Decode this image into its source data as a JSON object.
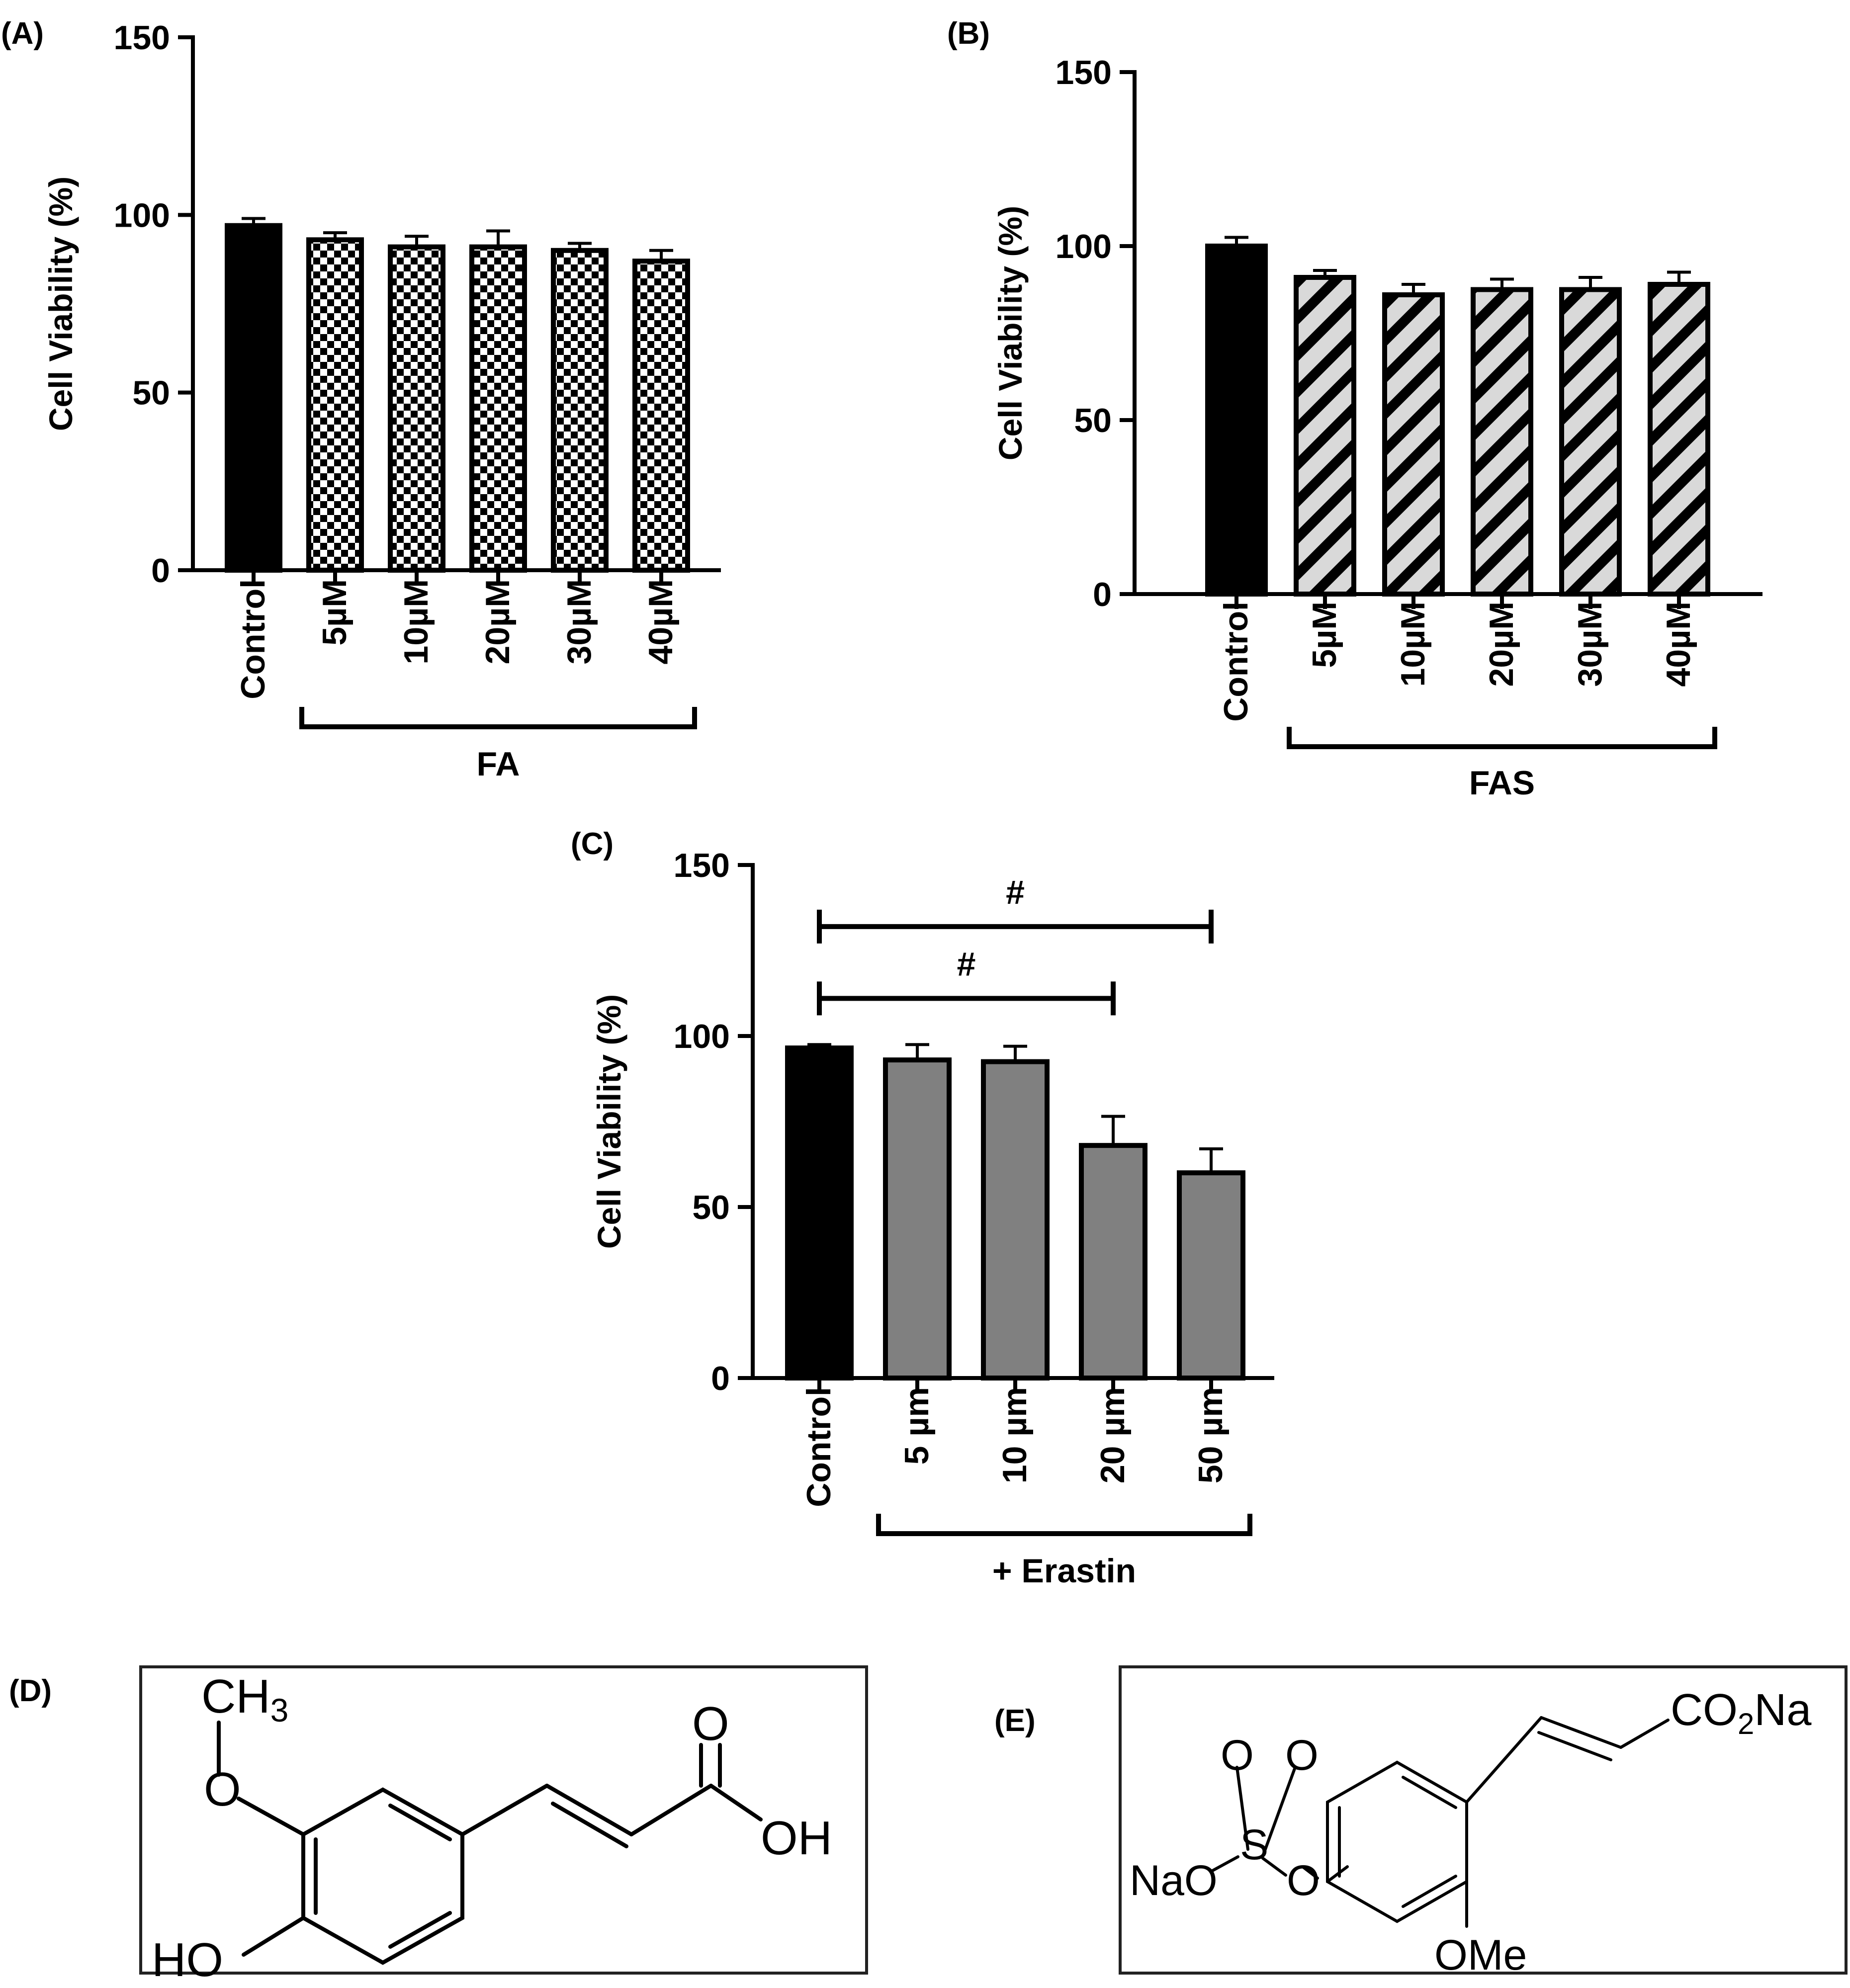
{
  "panels": {
    "A": {
      "label": "(A)"
    },
    "B": {
      "label": "(B)"
    },
    "C": {
      "label": "(C)"
    },
    "D": {
      "label": "(D)"
    },
    "E": {
      "label": "(E)"
    }
  },
  "chart_data": [
    {
      "id": "A",
      "type": "bar",
      "ylabel": "Cell Viability (%)",
      "ylim": [
        0,
        150
      ],
      "yticks": [
        0,
        50,
        100,
        150
      ],
      "categories": [
        "Control",
        "5µM",
        "10µM",
        "20µM",
        "30µM",
        "40µM"
      ],
      "values": [
        97,
        93,
        91,
        91,
        90,
        87
      ],
      "errors": [
        2,
        2,
        3,
        4.5,
        2,
        3
      ],
      "fills": [
        "solid",
        "checker",
        "checker",
        "checker",
        "checker",
        "checker"
      ],
      "group": {
        "label": "FA",
        "from": 1,
        "to": 5
      },
      "grid": false,
      "legend": "none"
    },
    {
      "id": "B",
      "type": "bar",
      "ylabel": "Cell Viability (%)",
      "ylim": [
        0,
        150
      ],
      "yticks": [
        0,
        50,
        100,
        150
      ],
      "categories": [
        "Control",
        "5µM",
        "10µM",
        "20µM",
        "30µM",
        "40µM"
      ],
      "values": [
        100,
        91,
        86,
        87.5,
        87.5,
        89
      ],
      "errors": [
        2.5,
        2,
        3,
        3,
        3.5,
        3.5
      ],
      "fills": [
        "solid",
        "hatch",
        "hatch",
        "hatch",
        "hatch",
        "hatch"
      ],
      "group": {
        "label": "FAS",
        "from": 1,
        "to": 5
      },
      "grid": false,
      "legend": "none"
    },
    {
      "id": "C",
      "type": "bar",
      "ylabel": "Cell  Viability (%)",
      "ylim": [
        0,
        150
      ],
      "yticks": [
        0,
        50,
        100,
        150
      ],
      "categories": [
        "Control",
        "5 µm",
        "10 µm",
        "20 µm",
        "50 µm"
      ],
      "values": [
        96.5,
        93,
        92.5,
        68,
        60
      ],
      "errors": [
        1,
        4.5,
        4.5,
        8.5,
        7
      ],
      "fills": [
        "solid",
        "gray",
        "gray",
        "gray",
        "gray"
      ],
      "group": {
        "label": "+ Erastin",
        "from": 1,
        "to": 4
      },
      "significance": [
        {
          "from": 0,
          "to": 4,
          "label": "#",
          "y": 132
        },
        {
          "from": 0,
          "to": 3,
          "label": "#",
          "y": 111
        }
      ],
      "grid": false,
      "legend": "none"
    }
  ],
  "structures": {
    "D": {
      "labels": {
        "ch3": "CH",
        "ch3_sub": "3",
        "o": "O",
        "o_top": "O",
        "oh": "OH",
        "ho": "HO"
      }
    },
    "E": {
      "labels": {
        "co2na_a": "CO",
        "co2na_sub": "2",
        "co2na_b": "Na",
        "o1": "O",
        "o2": "O",
        "s": "S",
        "nao": "NaO",
        "o_link": "O",
        "ome": "OMe"
      }
    }
  }
}
